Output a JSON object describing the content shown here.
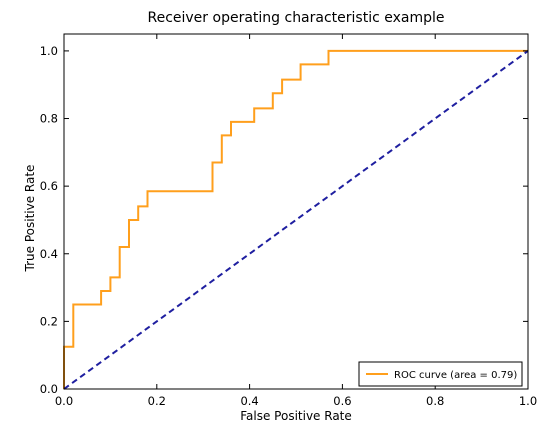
{
  "chart_data": {
    "type": "line",
    "title": "Receiver operating characteristic example",
    "xlabel": "False Positive Rate",
    "ylabel": "True Positive Rate",
    "xlim": [
      0.0,
      1.0
    ],
    "ylim": [
      0.0,
      1.05
    ],
    "xticks": [
      "0.0",
      "0.2",
      "0.4",
      "0.6",
      "0.8",
      "1.0"
    ],
    "yticks": [
      "0.0",
      "0.2",
      "0.4",
      "0.6",
      "0.8",
      "1.0"
    ],
    "grid": false,
    "legend_position": "lower right",
    "series": [
      {
        "name": "ROC curve (area = 0.79)",
        "color": "#ff9f1c",
        "style": "solid",
        "step": true,
        "x": [
          0.0,
          0.0,
          0.02,
          0.02,
          0.08,
          0.08,
          0.1,
          0.1,
          0.12,
          0.12,
          0.14,
          0.14,
          0.16,
          0.16,
          0.18,
          0.18,
          0.32,
          0.32,
          0.34,
          0.34,
          0.36,
          0.36,
          0.41,
          0.41,
          0.45,
          0.45,
          0.47,
          0.47,
          0.51,
          0.51,
          0.57,
          0.57,
          1.0
        ],
        "y": [
          0.0,
          0.125,
          0.125,
          0.25,
          0.25,
          0.29,
          0.29,
          0.33,
          0.33,
          0.42,
          0.42,
          0.5,
          0.5,
          0.54,
          0.54,
          0.585,
          0.585,
          0.67,
          0.67,
          0.75,
          0.75,
          0.79,
          0.79,
          0.83,
          0.83,
          0.875,
          0.875,
          0.915,
          0.915,
          0.96,
          0.96,
          1.0,
          1.0
        ]
      },
      {
        "name": "",
        "color": "#1f1fa0",
        "style": "dashed",
        "x": [
          0.0,
          1.0
        ],
        "y": [
          0.0,
          1.0
        ]
      }
    ]
  }
}
